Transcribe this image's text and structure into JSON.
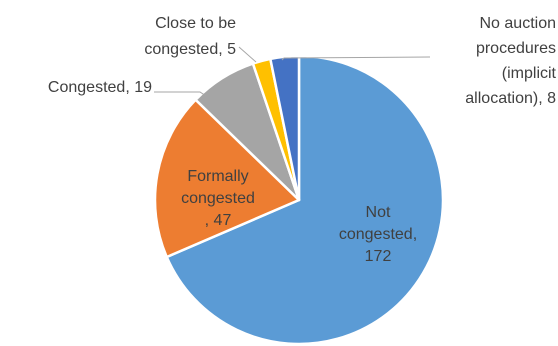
{
  "chart_data": {
    "type": "pie",
    "title": "",
    "start_angle_deg": 0,
    "direction": "clockwise",
    "slices": [
      {
        "key": "not-congested",
        "lines": [
          "Not",
          "congested,",
          "172"
        ],
        "value": 172,
        "color": "#5b9bd5"
      },
      {
        "key": "formally-congested",
        "lines": [
          "Formally",
          "congested",
          ", 47"
        ],
        "value": 47,
        "color": "#ed7d31"
      },
      {
        "key": "congested",
        "lines": [
          "Congested, 19"
        ],
        "value": 19,
        "color": "#a5a5a5"
      },
      {
        "key": "close-to-be-congested",
        "lines": [
          "Close to be",
          "congested, 5"
        ],
        "value": 5,
        "color": "#ffc000"
      },
      {
        "key": "no-auction-procedures",
        "lines": [
          "No auction",
          "procedures",
          "(implicit",
          "allocation), 8"
        ],
        "value": 8,
        "color": "#4472c4"
      }
    ]
  }
}
